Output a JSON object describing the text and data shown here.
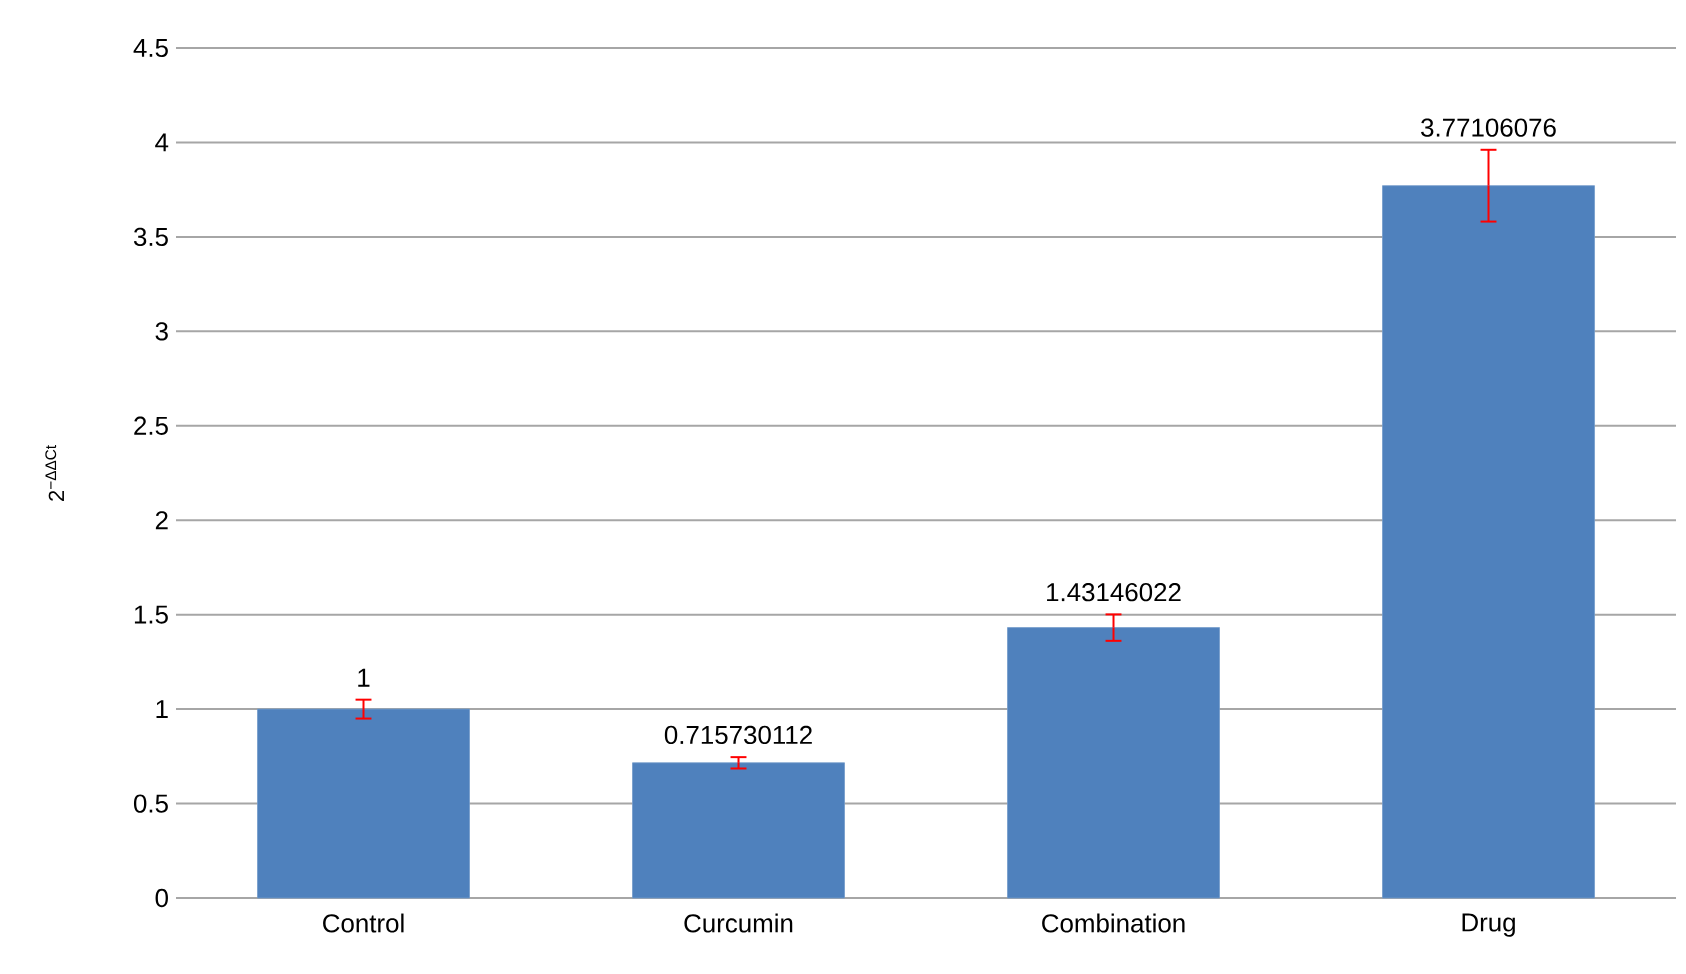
{
  "chart_data": {
    "type": "bar",
    "ylabel": "2$^{−ΔΔCt}$",
    "categories": [
      "Control",
      "Curcumin",
      "Combination",
      "Drug"
    ],
    "values": [
      1,
      0.715730112,
      1.43146022,
      3.77106076
    ],
    "value_labels": [
      "1",
      "0.715730112",
      "1.43146022",
      "3.77106076"
    ],
    "errors": [
      0.05,
      0.03,
      0.07,
      0.19
    ],
    "color": "#4f81bd",
    "ylim": [
      0,
      4.5
    ],
    "yticks": [
      0,
      0.5,
      1,
      1.5,
      2,
      2.5,
      3,
      3.5,
      4,
      4.5
    ],
    "grid": "y"
  }
}
